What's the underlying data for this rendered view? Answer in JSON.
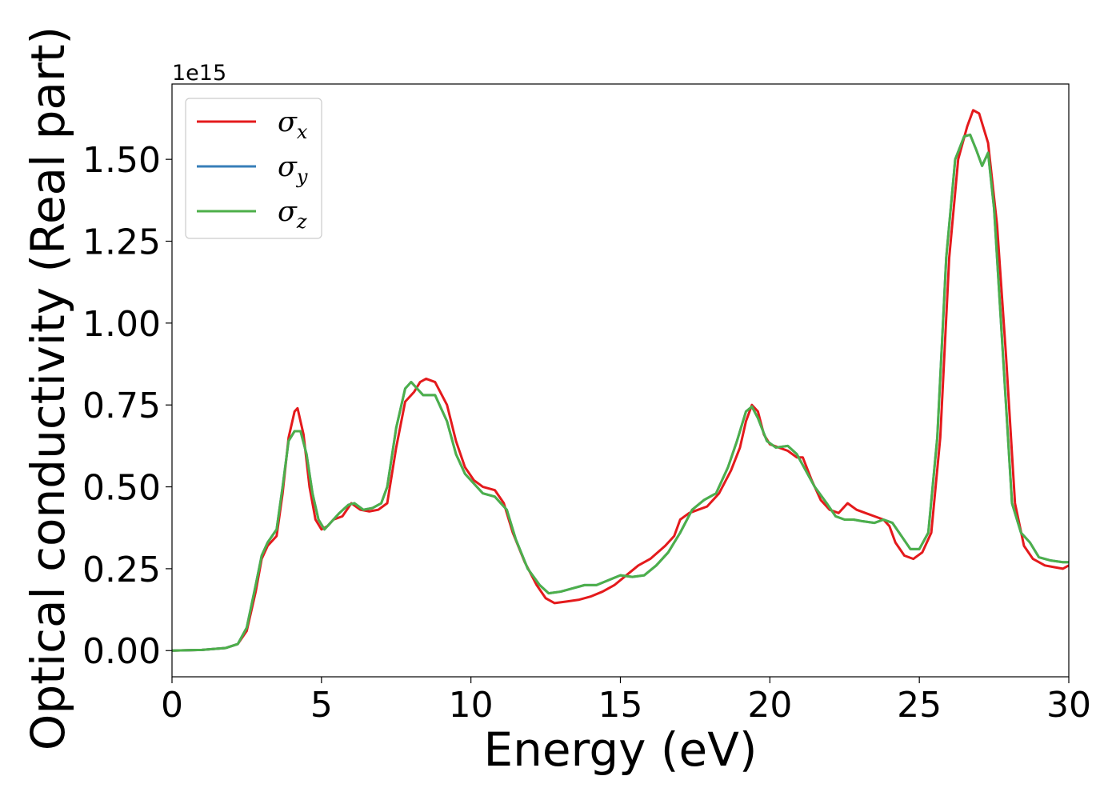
{
  "chart_data": {
    "type": "line",
    "title": "",
    "xlabel": "Energy (eV)",
    "ylabel": "Optical conductivity (Real part)",
    "y_offset_label": "1e15",
    "xlim": [
      0,
      30
    ],
    "ylim": [
      -0.08,
      1.73
    ],
    "x_ticks": [
      0,
      5,
      10,
      15,
      20,
      25,
      30
    ],
    "x_tick_labels": [
      "0",
      "5",
      "10",
      "15",
      "20",
      "25",
      "30"
    ],
    "y_ticks": [
      0,
      0.25,
      0.5,
      0.75,
      1.0,
      1.25,
      1.5
    ],
    "y_tick_labels": [
      "0.00",
      "0.25",
      "0.50",
      "0.75",
      "1.00",
      "1.25",
      "1.50"
    ],
    "grid": false,
    "legend_position": "upper-left",
    "series": [
      {
        "name": "σx",
        "symbol": "σ",
        "subscript": "x",
        "color": "#e41a1c",
        "points": [
          [
            0,
            0
          ],
          [
            1.0,
            0.002
          ],
          [
            1.8,
            0.008
          ],
          [
            2.2,
            0.02
          ],
          [
            2.5,
            0.06
          ],
          [
            2.8,
            0.18
          ],
          [
            3.0,
            0.28
          ],
          [
            3.2,
            0.32
          ],
          [
            3.5,
            0.35
          ],
          [
            3.7,
            0.48
          ],
          [
            3.9,
            0.65
          ],
          [
            4.1,
            0.73
          ],
          [
            4.2,
            0.74
          ],
          [
            4.4,
            0.66
          ],
          [
            4.6,
            0.5
          ],
          [
            4.8,
            0.4
          ],
          [
            5.0,
            0.37
          ],
          [
            5.2,
            0.38
          ],
          [
            5.4,
            0.4
          ],
          [
            5.7,
            0.41
          ],
          [
            6.0,
            0.45
          ],
          [
            6.3,
            0.43
          ],
          [
            6.6,
            0.425
          ],
          [
            6.9,
            0.43
          ],
          [
            7.2,
            0.45
          ],
          [
            7.5,
            0.62
          ],
          [
            7.8,
            0.76
          ],
          [
            8.1,
            0.79
          ],
          [
            8.3,
            0.82
          ],
          [
            8.5,
            0.83
          ],
          [
            8.8,
            0.82
          ],
          [
            9.2,
            0.75
          ],
          [
            9.5,
            0.64
          ],
          [
            9.8,
            0.56
          ],
          [
            10.1,
            0.52
          ],
          [
            10.4,
            0.5
          ],
          [
            10.8,
            0.49
          ],
          [
            11.1,
            0.45
          ],
          [
            11.4,
            0.36
          ],
          [
            11.8,
            0.27
          ],
          [
            12.2,
            0.2
          ],
          [
            12.5,
            0.16
          ],
          [
            12.8,
            0.145
          ],
          [
            13.2,
            0.15
          ],
          [
            13.6,
            0.155
          ],
          [
            14.0,
            0.165
          ],
          [
            14.4,
            0.18
          ],
          [
            14.8,
            0.2
          ],
          [
            15.2,
            0.23
          ],
          [
            15.6,
            0.26
          ],
          [
            16.0,
            0.28
          ],
          [
            16.5,
            0.32
          ],
          [
            16.8,
            0.35
          ],
          [
            17.0,
            0.4
          ],
          [
            17.3,
            0.42
          ],
          [
            17.6,
            0.43
          ],
          [
            17.9,
            0.44
          ],
          [
            18.3,
            0.48
          ],
          [
            18.7,
            0.55
          ],
          [
            19.0,
            0.62
          ],
          [
            19.2,
            0.7
          ],
          [
            19.4,
            0.75
          ],
          [
            19.6,
            0.73
          ],
          [
            19.8,
            0.66
          ],
          [
            20.0,
            0.63
          ],
          [
            20.3,
            0.62
          ],
          [
            20.6,
            0.61
          ],
          [
            20.9,
            0.59
          ],
          [
            21.1,
            0.59
          ],
          [
            21.4,
            0.52
          ],
          [
            21.7,
            0.46
          ],
          [
            22.0,
            0.43
          ],
          [
            22.3,
            0.42
          ],
          [
            22.6,
            0.45
          ],
          [
            22.9,
            0.43
          ],
          [
            23.2,
            0.42
          ],
          [
            23.5,
            0.41
          ],
          [
            23.8,
            0.4
          ],
          [
            24.0,
            0.38
          ],
          [
            24.2,
            0.33
          ],
          [
            24.5,
            0.29
          ],
          [
            24.8,
            0.28
          ],
          [
            25.1,
            0.3
          ],
          [
            25.4,
            0.36
          ],
          [
            25.7,
            0.65
          ],
          [
            26.0,
            1.2
          ],
          [
            26.3,
            1.5
          ],
          [
            26.6,
            1.6
          ],
          [
            26.8,
            1.65
          ],
          [
            27.0,
            1.64
          ],
          [
            27.3,
            1.55
          ],
          [
            27.6,
            1.3
          ],
          [
            27.9,
            0.9
          ],
          [
            28.2,
            0.45
          ],
          [
            28.5,
            0.32
          ],
          [
            28.8,
            0.28
          ],
          [
            29.2,
            0.26
          ],
          [
            29.5,
            0.255
          ],
          [
            29.8,
            0.25
          ],
          [
            30.0,
            0.26
          ]
        ]
      },
      {
        "name": "σy",
        "symbol": "σ",
        "subscript": "y",
        "color": "#377eb8",
        "points": [
          [
            0,
            0
          ],
          [
            1.0,
            0.002
          ],
          [
            1.8,
            0.008
          ],
          [
            2.2,
            0.02
          ],
          [
            2.5,
            0.07
          ],
          [
            2.8,
            0.2
          ],
          [
            3.0,
            0.29
          ],
          [
            3.2,
            0.33
          ],
          [
            3.5,
            0.37
          ],
          [
            3.7,
            0.5
          ],
          [
            3.9,
            0.64
          ],
          [
            4.1,
            0.67
          ],
          [
            4.3,
            0.67
          ],
          [
            4.5,
            0.6
          ],
          [
            4.7,
            0.48
          ],
          [
            4.9,
            0.4
          ],
          [
            5.1,
            0.37
          ],
          [
            5.3,
            0.39
          ],
          [
            5.6,
            0.42
          ],
          [
            5.9,
            0.445
          ],
          [
            6.1,
            0.45
          ],
          [
            6.4,
            0.43
          ],
          [
            6.7,
            0.435
          ],
          [
            7.0,
            0.45
          ],
          [
            7.2,
            0.5
          ],
          [
            7.5,
            0.68
          ],
          [
            7.8,
            0.8
          ],
          [
            8.0,
            0.82
          ],
          [
            8.2,
            0.8
          ],
          [
            8.4,
            0.78
          ],
          [
            8.8,
            0.78
          ],
          [
            9.2,
            0.7
          ],
          [
            9.5,
            0.6
          ],
          [
            9.8,
            0.54
          ],
          [
            10.1,
            0.51
          ],
          [
            10.4,
            0.48
          ],
          [
            10.8,
            0.47
          ],
          [
            11.2,
            0.43
          ],
          [
            11.5,
            0.34
          ],
          [
            11.9,
            0.25
          ],
          [
            12.3,
            0.2
          ],
          [
            12.6,
            0.175
          ],
          [
            13.0,
            0.18
          ],
          [
            13.4,
            0.19
          ],
          [
            13.8,
            0.2
          ],
          [
            14.2,
            0.2
          ],
          [
            14.6,
            0.215
          ],
          [
            15.0,
            0.23
          ],
          [
            15.4,
            0.225
          ],
          [
            15.8,
            0.23
          ],
          [
            16.2,
            0.26
          ],
          [
            16.6,
            0.3
          ],
          [
            17.0,
            0.36
          ],
          [
            17.4,
            0.43
          ],
          [
            17.8,
            0.46
          ],
          [
            18.2,
            0.48
          ],
          [
            18.6,
            0.56
          ],
          [
            18.9,
            0.64
          ],
          [
            19.2,
            0.73
          ],
          [
            19.4,
            0.745
          ],
          [
            19.6,
            0.71
          ],
          [
            19.9,
            0.64
          ],
          [
            20.2,
            0.62
          ],
          [
            20.6,
            0.625
          ],
          [
            20.9,
            0.6
          ],
          [
            21.2,
            0.55
          ],
          [
            21.5,
            0.5
          ],
          [
            21.9,
            0.45
          ],
          [
            22.2,
            0.41
          ],
          [
            22.5,
            0.4
          ],
          [
            22.8,
            0.4
          ],
          [
            23.1,
            0.395
          ],
          [
            23.5,
            0.39
          ],
          [
            23.8,
            0.4
          ],
          [
            24.1,
            0.39
          ],
          [
            24.4,
            0.35
          ],
          [
            24.7,
            0.31
          ],
          [
            25.0,
            0.31
          ],
          [
            25.3,
            0.36
          ],
          [
            25.6,
            0.65
          ],
          [
            25.9,
            1.2
          ],
          [
            26.2,
            1.5
          ],
          [
            26.5,
            1.57
          ],
          [
            26.7,
            1.575
          ],
          [
            26.9,
            1.53
          ],
          [
            27.1,
            1.48
          ],
          [
            27.3,
            1.52
          ],
          [
            27.5,
            1.35
          ],
          [
            27.8,
            0.9
          ],
          [
            28.1,
            0.45
          ],
          [
            28.4,
            0.36
          ],
          [
            28.7,
            0.33
          ],
          [
            29.0,
            0.285
          ],
          [
            29.4,
            0.275
          ],
          [
            29.8,
            0.27
          ],
          [
            30.0,
            0.27
          ]
        ]
      },
      {
        "name": "σz",
        "symbol": "σ",
        "subscript": "z",
        "color": "#4daf4a",
        "points": [
          [
            0,
            0
          ],
          [
            1.0,
            0.002
          ],
          [
            1.8,
            0.008
          ],
          [
            2.2,
            0.02
          ],
          [
            2.5,
            0.07
          ],
          [
            2.8,
            0.2
          ],
          [
            3.0,
            0.29
          ],
          [
            3.2,
            0.33
          ],
          [
            3.5,
            0.37
          ],
          [
            3.7,
            0.5
          ],
          [
            3.9,
            0.64
          ],
          [
            4.1,
            0.67
          ],
          [
            4.3,
            0.67
          ],
          [
            4.5,
            0.6
          ],
          [
            4.7,
            0.48
          ],
          [
            4.9,
            0.4
          ],
          [
            5.1,
            0.37
          ],
          [
            5.3,
            0.39
          ],
          [
            5.6,
            0.42
          ],
          [
            5.9,
            0.445
          ],
          [
            6.1,
            0.45
          ],
          [
            6.4,
            0.43
          ],
          [
            6.7,
            0.435
          ],
          [
            7.0,
            0.45
          ],
          [
            7.2,
            0.5
          ],
          [
            7.5,
            0.68
          ],
          [
            7.8,
            0.8
          ],
          [
            8.0,
            0.82
          ],
          [
            8.2,
            0.8
          ],
          [
            8.4,
            0.78
          ],
          [
            8.8,
            0.78
          ],
          [
            9.2,
            0.7
          ],
          [
            9.5,
            0.6
          ],
          [
            9.8,
            0.54
          ],
          [
            10.1,
            0.51
          ],
          [
            10.4,
            0.48
          ],
          [
            10.8,
            0.47
          ],
          [
            11.2,
            0.43
          ],
          [
            11.5,
            0.34
          ],
          [
            11.9,
            0.25
          ],
          [
            12.3,
            0.2
          ],
          [
            12.6,
            0.175
          ],
          [
            13.0,
            0.18
          ],
          [
            13.4,
            0.19
          ],
          [
            13.8,
            0.2
          ],
          [
            14.2,
            0.2
          ],
          [
            14.6,
            0.215
          ],
          [
            15.0,
            0.23
          ],
          [
            15.4,
            0.225
          ],
          [
            15.8,
            0.23
          ],
          [
            16.2,
            0.26
          ],
          [
            16.6,
            0.3
          ],
          [
            17.0,
            0.36
          ],
          [
            17.4,
            0.43
          ],
          [
            17.8,
            0.46
          ],
          [
            18.2,
            0.48
          ],
          [
            18.6,
            0.56
          ],
          [
            18.9,
            0.64
          ],
          [
            19.2,
            0.73
          ],
          [
            19.4,
            0.745
          ],
          [
            19.6,
            0.71
          ],
          [
            19.9,
            0.64
          ],
          [
            20.2,
            0.62
          ],
          [
            20.6,
            0.625
          ],
          [
            20.9,
            0.6
          ],
          [
            21.2,
            0.55
          ],
          [
            21.5,
            0.5
          ],
          [
            21.9,
            0.45
          ],
          [
            22.2,
            0.41
          ],
          [
            22.5,
            0.4
          ],
          [
            22.8,
            0.4
          ],
          [
            23.1,
            0.395
          ],
          [
            23.5,
            0.39
          ],
          [
            23.8,
            0.4
          ],
          [
            24.1,
            0.39
          ],
          [
            24.4,
            0.35
          ],
          [
            24.7,
            0.31
          ],
          [
            25.0,
            0.31
          ],
          [
            25.3,
            0.36
          ],
          [
            25.6,
            0.65
          ],
          [
            25.9,
            1.2
          ],
          [
            26.2,
            1.5
          ],
          [
            26.5,
            1.57
          ],
          [
            26.7,
            1.575
          ],
          [
            26.9,
            1.53
          ],
          [
            27.1,
            1.48
          ],
          [
            27.3,
            1.52
          ],
          [
            27.5,
            1.35
          ],
          [
            27.8,
            0.9
          ],
          [
            28.1,
            0.45
          ],
          [
            28.4,
            0.36
          ],
          [
            28.7,
            0.33
          ],
          [
            29.0,
            0.285
          ],
          [
            29.4,
            0.275
          ],
          [
            29.8,
            0.27
          ],
          [
            30.0,
            0.27
          ]
        ]
      }
    ]
  }
}
